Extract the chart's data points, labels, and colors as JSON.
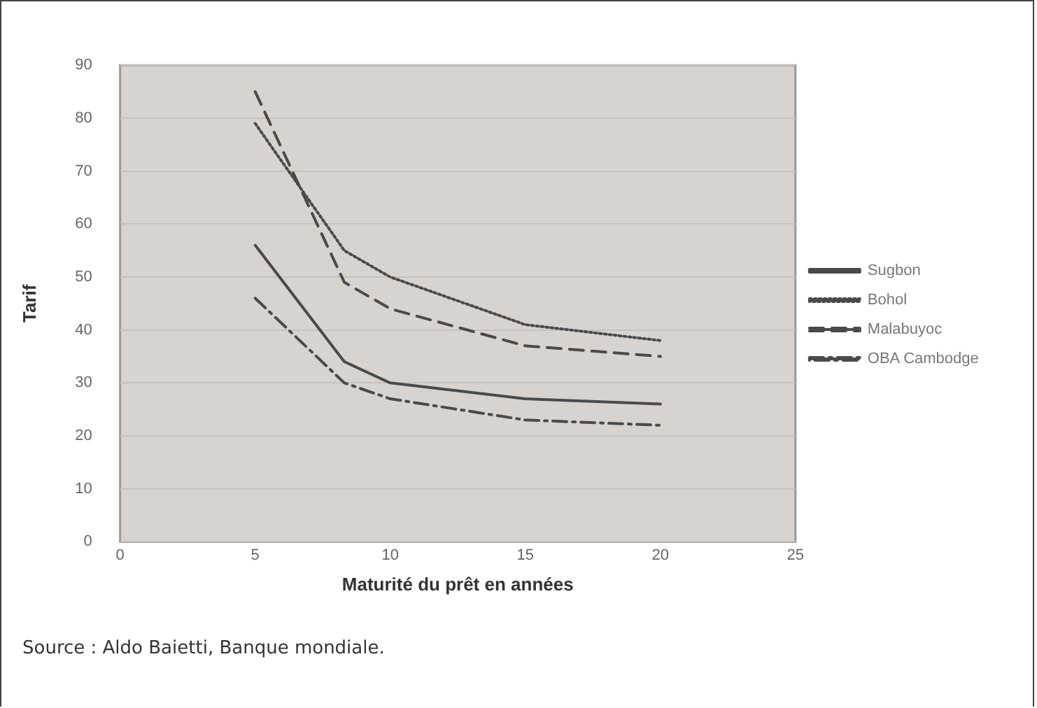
{
  "chart_data": {
    "type": "line",
    "xlabel": "Maturité du prêt en années",
    "ylabel": "Tarif",
    "x": [
      5,
      8.3,
      10,
      15,
      20
    ],
    "series": [
      {
        "name": "Sugbon",
        "color": "#4a4a4a",
        "line_style": "solid",
        "values": [
          56,
          34,
          30,
          27,
          26
        ]
      },
      {
        "name": "Bohol",
        "color": "#4a4a4a",
        "line_style": "dotted",
        "values": [
          79,
          55,
          50,
          41,
          38
        ]
      },
      {
        "name": "Malabuyoc",
        "color": "#4a4a4a",
        "line_style": "dashed",
        "values": [
          85,
          49,
          44,
          37,
          35
        ]
      },
      {
        "name": "OBA Cambodge",
        "color": "#4a4a4a",
        "line_style": "dashdot",
        "values": [
          46,
          30,
          27,
          23,
          22
        ]
      }
    ],
    "xlim": [
      0,
      25
    ],
    "xticks": [
      0,
      5,
      10,
      15,
      20,
      25
    ],
    "ylim": [
      0,
      90
    ],
    "yticks": [
      0,
      10,
      20,
      30,
      40,
      50,
      60,
      70,
      80,
      90
    ],
    "grid": "y",
    "legend": "right",
    "marker": "none",
    "annotations": [
      "Source : Aldo Baietti, Banque mondiale."
    ]
  }
}
